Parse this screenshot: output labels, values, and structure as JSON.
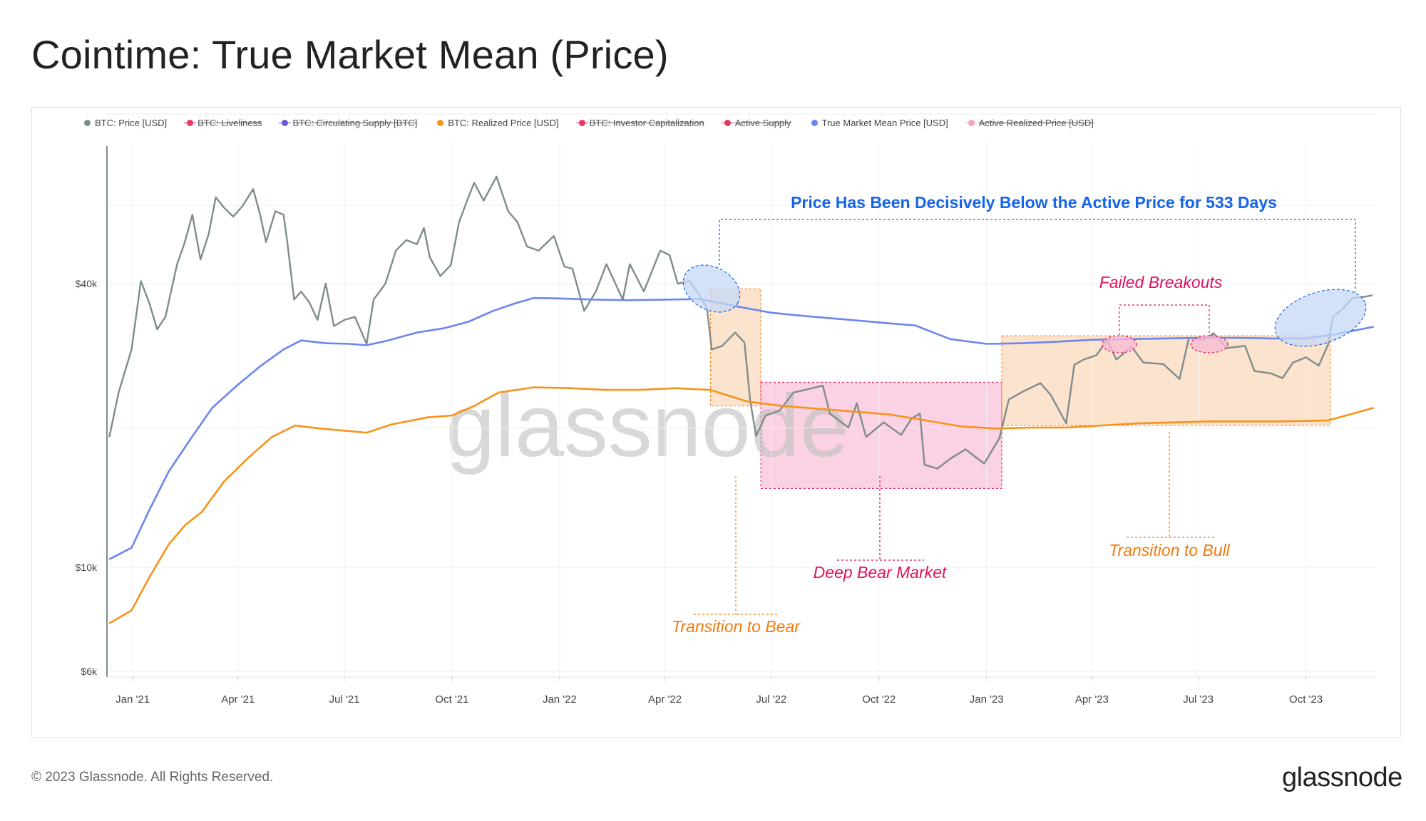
{
  "title": "Cointime: True Market Mean (Price)",
  "footer": {
    "copyright": "© 2023 Glassnode. All Rights Reserved.",
    "brand": "glassnode"
  },
  "watermark": "glassnode",
  "colors": {
    "price": "#7f8c8d",
    "realized": "#f7931a",
    "true_market_mean": "#6b86f0",
    "annotation_blue": "#1565e8",
    "annotation_pink": "#e0115f",
    "annotation_orange": "#f47b0c",
    "bear_zone": "#f9c2db",
    "transition_zone": "#fbd9bd",
    "highlight_blue": "#c6d8f7"
  },
  "legend": [
    {
      "label": "BTC: Price [USD]",
      "color": "#7f8c8d",
      "active": true
    },
    {
      "label": "BTC: Liveliness",
      "color": "#e8365d",
      "active": false
    },
    {
      "label": "BTC: Circulating Supply [BTC]",
      "color": "#6a5acd",
      "active": false
    },
    {
      "label": "BTC: Realized Price [USD]",
      "color": "#f7931a",
      "active": true
    },
    {
      "label": "BTC: Investor Capitalization",
      "color": "#e8365d",
      "active": false
    },
    {
      "label": "Active Supply",
      "color": "#e8365d",
      "active": false
    },
    {
      "label": "True Market Mean Price [USD]",
      "color": "#6b86f0",
      "active": true
    },
    {
      "label": "Active Realized Price [USD]",
      "color": "#f5a3c0",
      "active": false
    }
  ],
  "annotations": {
    "below_active": "Price Has Been Decisively Below the Active Price for 533 Days",
    "failed_breakouts": "Failed Breakouts",
    "transition_bear": "Transition to Bear",
    "deep_bear": "Deep Bear Market",
    "transition_bull": "Transition to Bull"
  },
  "chart_data": {
    "type": "line",
    "y_scale": "log",
    "ylim": [
      6000,
      100000
    ],
    "xlim": [
      "2020-12-10",
      "2023-11-30"
    ],
    "y_ticks": [
      {
        "value": 40000,
        "label": "$40k"
      },
      {
        "value": 10000,
        "label": "$10k"
      },
      {
        "value": 6000,
        "label": "$6k"
      }
    ],
    "x_ticks": [
      {
        "date": "2021-01-01",
        "label": "Jan '21"
      },
      {
        "date": "2021-04-01",
        "label": "Apr '21"
      },
      {
        "date": "2021-07-01",
        "label": "Jul '21"
      },
      {
        "date": "2021-10-01",
        "label": "Oct '21"
      },
      {
        "date": "2022-01-01",
        "label": "Jan '22"
      },
      {
        "date": "2022-04-01",
        "label": "Apr '22"
      },
      {
        "date": "2022-07-01",
        "label": "Jul '22"
      },
      {
        "date": "2022-10-01",
        "label": "Oct '22"
      },
      {
        "date": "2023-01-01",
        "label": "Jan '23"
      },
      {
        "date": "2023-04-01",
        "label": "Apr '23"
      },
      {
        "date": "2023-07-01",
        "label": "Jul '23"
      },
      {
        "date": "2023-10-01",
        "label": "Oct '23"
      }
    ],
    "series": [
      {
        "name": "BTC: Price [USD]",
        "color": "#7f8c8d",
        "points": [
          [
            "2020-12-12",
            18900
          ],
          [
            "2020-12-20",
            23500
          ],
          [
            "2020-12-31",
            29000
          ],
          [
            "2021-01-08",
            40500
          ],
          [
            "2021-01-15",
            36500
          ],
          [
            "2021-01-22",
            32000
          ],
          [
            "2021-01-29",
            34000
          ],
          [
            "2021-02-08",
            44000
          ],
          [
            "2021-02-14",
            48500
          ],
          [
            "2021-02-21",
            56000
          ],
          [
            "2021-02-28",
            45000
          ],
          [
            "2021-03-07",
            51000
          ],
          [
            "2021-03-13",
            61000
          ],
          [
            "2021-03-20",
            58000
          ],
          [
            "2021-03-28",
            55500
          ],
          [
            "2021-04-05",
            58500
          ],
          [
            "2021-04-14",
            63500
          ],
          [
            "2021-04-20",
            56000
          ],
          [
            "2021-04-25",
            49000
          ],
          [
            "2021-05-03",
            57000
          ],
          [
            "2021-05-10",
            56000
          ],
          [
            "2021-05-13",
            49500
          ],
          [
            "2021-05-19",
            37000
          ],
          [
            "2021-05-25",
            38500
          ],
          [
            "2021-06-01",
            36500
          ],
          [
            "2021-06-08",
            33500
          ],
          [
            "2021-06-15",
            40000
          ],
          [
            "2021-06-22",
            32500
          ],
          [
            "2021-07-01",
            33500
          ],
          [
            "2021-07-10",
            34000
          ],
          [
            "2021-07-20",
            29800
          ],
          [
            "2021-07-26",
            37000
          ],
          [
            "2021-08-05",
            40000
          ],
          [
            "2021-08-14",
            47000
          ],
          [
            "2021-08-23",
            49500
          ],
          [
            "2021-09-01",
            48500
          ],
          [
            "2021-09-07",
            52500
          ],
          [
            "2021-09-12",
            45500
          ],
          [
            "2021-09-21",
            41500
          ],
          [
            "2021-09-30",
            43800
          ],
          [
            "2021-10-07",
            54000
          ],
          [
            "2021-10-15",
            61000
          ],
          [
            "2021-10-20",
            65500
          ],
          [
            "2021-10-28",
            60000
          ],
          [
            "2021-11-08",
            67500
          ],
          [
            "2021-11-18",
            57000
          ],
          [
            "2021-11-26",
            54000
          ],
          [
            "2021-12-04",
            48000
          ],
          [
            "2021-12-14",
            47000
          ],
          [
            "2021-12-27",
            50500
          ],
          [
            "2022-01-05",
            43500
          ],
          [
            "2022-01-12",
            43000
          ],
          [
            "2022-01-22",
            35000
          ],
          [
            "2022-02-01",
            38500
          ],
          [
            "2022-02-10",
            44000
          ],
          [
            "2022-02-24",
            37000
          ],
          [
            "2022-03-02",
            44000
          ],
          [
            "2022-03-14",
            38500
          ],
          [
            "2022-03-28",
            47000
          ],
          [
            "2022-04-05",
            46000
          ],
          [
            "2022-04-12",
            40000
          ],
          [
            "2022-04-22",
            40500
          ],
          [
            "2022-04-30",
            38000
          ],
          [
            "2022-05-07",
            35500
          ],
          [
            "2022-05-11",
            29000
          ],
          [
            "2022-05-20",
            29500
          ],
          [
            "2022-05-31",
            31500
          ],
          [
            "2022-06-08",
            30000
          ],
          [
            "2022-06-13",
            22500
          ],
          [
            "2022-06-18",
            19000
          ],
          [
            "2022-06-26",
            21000
          ],
          [
            "2022-07-08",
            21500
          ],
          [
            "2022-07-20",
            23500
          ],
          [
            "2022-07-30",
            23800
          ],
          [
            "2022-08-14",
            24300
          ],
          [
            "2022-08-20",
            21200
          ],
          [
            "2022-09-05",
            19800
          ],
          [
            "2022-09-12",
            22300
          ],
          [
            "2022-09-20",
            18900
          ],
          [
            "2022-10-05",
            20300
          ],
          [
            "2022-10-20",
            19100
          ],
          [
            "2022-10-29",
            20700
          ],
          [
            "2022-11-05",
            21200
          ],
          [
            "2022-11-09",
            16500
          ],
          [
            "2022-11-20",
            16200
          ],
          [
            "2022-12-01",
            17000
          ],
          [
            "2022-12-14",
            17800
          ],
          [
            "2022-12-30",
            16600
          ],
          [
            "2023-01-12",
            18800
          ],
          [
            "2023-01-20",
            22700
          ],
          [
            "2023-02-01",
            23600
          ],
          [
            "2023-02-16",
            24600
          ],
          [
            "2023-02-25",
            23200
          ],
          [
            "2023-03-10",
            20200
          ],
          [
            "2023-03-17",
            26900
          ],
          [
            "2023-03-25",
            27600
          ],
          [
            "2023-04-05",
            28200
          ],
          [
            "2023-04-14",
            30400
          ],
          [
            "2023-04-22",
            27600
          ],
          [
            "2023-05-05",
            29400
          ],
          [
            "2023-05-15",
            27200
          ],
          [
            "2023-06-01",
            27000
          ],
          [
            "2023-06-15",
            25100
          ],
          [
            "2023-06-23",
            30700
          ],
          [
            "2023-07-06",
            30400
          ],
          [
            "2023-07-14",
            31400
          ],
          [
            "2023-07-25",
            29200
          ],
          [
            "2023-08-10",
            29500
          ],
          [
            "2023-08-18",
            26100
          ],
          [
            "2023-09-01",
            25800
          ],
          [
            "2023-09-11",
            25200
          ],
          [
            "2023-09-20",
            27200
          ],
          [
            "2023-10-01",
            27900
          ],
          [
            "2023-10-12",
            26800
          ],
          [
            "2023-10-20",
            29700
          ],
          [
            "2023-10-24",
            34000
          ],
          [
            "2023-11-01",
            35300
          ],
          [
            "2023-11-10",
            37300
          ],
          [
            "2023-11-20",
            37500
          ],
          [
            "2023-11-27",
            37800
          ]
        ]
      },
      {
        "name": "True Market Mean Price [USD]",
        "color": "#6b86f0",
        "points": [
          [
            "2020-12-12",
            10400
          ],
          [
            "2020-12-31",
            11000
          ],
          [
            "2021-01-15",
            13200
          ],
          [
            "2021-02-01",
            16000
          ],
          [
            "2021-02-20",
            18800
          ],
          [
            "2021-03-10",
            21800
          ],
          [
            "2021-03-31",
            24300
          ],
          [
            "2021-04-20",
            26700
          ],
          [
            "2021-05-10",
            29000
          ],
          [
            "2021-05-25",
            30300
          ],
          [
            "2021-06-15",
            29900
          ],
          [
            "2021-07-05",
            29800
          ],
          [
            "2021-07-20",
            29600
          ],
          [
            "2021-08-05",
            30200
          ],
          [
            "2021-09-01",
            31500
          ],
          [
            "2021-09-25",
            32200
          ],
          [
            "2021-10-15",
            33200
          ],
          [
            "2021-11-05",
            35000
          ],
          [
            "2021-11-25",
            36400
          ],
          [
            "2021-12-10",
            37300
          ],
          [
            "2022-01-01",
            37200
          ],
          [
            "2022-02-01",
            37000
          ],
          [
            "2022-03-01",
            36900
          ],
          [
            "2022-04-01",
            37000
          ],
          [
            "2022-05-01",
            37100
          ],
          [
            "2022-06-01",
            35800
          ],
          [
            "2022-07-01",
            34700
          ],
          [
            "2022-08-01",
            34100
          ],
          [
            "2022-09-01",
            33600
          ],
          [
            "2022-10-01",
            33100
          ],
          [
            "2022-11-01",
            32600
          ],
          [
            "2022-12-01",
            30500
          ],
          [
            "2023-01-01",
            29800
          ],
          [
            "2023-02-01",
            29900
          ],
          [
            "2023-03-01",
            30100
          ],
          [
            "2023-04-01",
            30400
          ],
          [
            "2023-05-01",
            30500
          ],
          [
            "2023-06-01",
            30600
          ],
          [
            "2023-07-01",
            30700
          ],
          [
            "2023-08-01",
            30700
          ],
          [
            "2023-09-01",
            30600
          ],
          [
            "2023-10-01",
            30600
          ],
          [
            "2023-10-25",
            31200
          ],
          [
            "2023-11-28",
            32400
          ]
        ]
      },
      {
        "name": "BTC: Realized Price [USD]",
        "color": "#f7931a",
        "points": [
          [
            "2020-12-12",
            7600
          ],
          [
            "2020-12-31",
            8100
          ],
          [
            "2021-01-15",
            9500
          ],
          [
            "2021-02-01",
            11200
          ],
          [
            "2021-02-15",
            12300
          ],
          [
            "2021-03-01",
            13100
          ],
          [
            "2021-03-20",
            15200
          ],
          [
            "2021-04-10",
            17100
          ],
          [
            "2021-04-30",
            18900
          ],
          [
            "2021-05-20",
            20000
          ],
          [
            "2021-06-10",
            19700
          ],
          [
            "2021-07-01",
            19500
          ],
          [
            "2021-07-20",
            19300
          ],
          [
            "2021-08-10",
            20100
          ],
          [
            "2021-09-10",
            20800
          ],
          [
            "2021-10-01",
            21000
          ],
          [
            "2021-10-20",
            22000
          ],
          [
            "2021-11-10",
            23500
          ],
          [
            "2021-12-10",
            24100
          ],
          [
            "2022-01-10",
            24000
          ],
          [
            "2022-02-10",
            23800
          ],
          [
            "2022-03-10",
            23800
          ],
          [
            "2022-04-10",
            24000
          ],
          [
            "2022-05-10",
            23800
          ],
          [
            "2022-06-10",
            22500
          ],
          [
            "2022-07-10",
            22000
          ],
          [
            "2022-08-10",
            21700
          ],
          [
            "2022-09-10",
            21400
          ],
          [
            "2022-10-10",
            21100
          ],
          [
            "2022-11-10",
            20500
          ],
          [
            "2022-12-10",
            19900
          ],
          [
            "2023-01-10",
            19700
          ],
          [
            "2023-02-10",
            19800
          ],
          [
            "2023-03-10",
            19800
          ],
          [
            "2023-04-10",
            20000
          ],
          [
            "2023-05-10",
            20200
          ],
          [
            "2023-06-10",
            20300
          ],
          [
            "2023-07-10",
            20400
          ],
          [
            "2023-08-10",
            20400
          ],
          [
            "2023-09-10",
            20400
          ],
          [
            "2023-10-20",
            20500
          ],
          [
            "2023-11-28",
            21800
          ]
        ]
      }
    ],
    "regions": [
      {
        "label": "Transition to Bear",
        "from": "2022-05-10",
        "to": "2022-06-22",
        "ylim": [
          22000,
          39000
        ],
        "color": "#fbd9bd"
      },
      {
        "label": "Deep Bear Market",
        "from": "2022-06-22",
        "to": "2023-01-14",
        "ylim": [
          14700,
          24700
        ],
        "color": "#f9c2db"
      },
      {
        "label": "Transition to Bull",
        "from": "2023-01-14",
        "to": "2023-10-22",
        "ylim": [
          20000,
          31000
        ],
        "color": "#fbd9bd"
      }
    ]
  }
}
